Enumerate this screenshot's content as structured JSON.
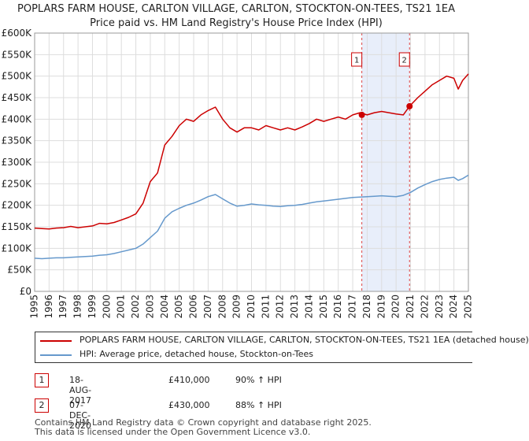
{
  "chart_data": {
    "type": "line",
    "title": "POPLARS FARM HOUSE, CARLTON VILLAGE, CARLTON, STOCKTON-ON-TEES, TS21 1EA",
    "subtitle": "Price paid vs. HM Land Registry's House Price Index (HPI)",
    "xlim": [
      1995,
      2025
    ],
    "ylim": [
      0,
      600000
    ],
    "y_ticks": [
      0,
      50000,
      100000,
      150000,
      200000,
      250000,
      300000,
      350000,
      400000,
      450000,
      500000,
      550000,
      600000
    ],
    "y_tick_labels": [
      "£0",
      "£50K",
      "£100K",
      "£150K",
      "£200K",
      "£250K",
      "£300K",
      "£350K",
      "£400K",
      "£450K",
      "£500K",
      "£550K",
      "£600K"
    ],
    "x_ticks": [
      1995,
      1996,
      1997,
      1998,
      1999,
      2000,
      2001,
      2002,
      2003,
      2004,
      2005,
      2006,
      2007,
      2008,
      2009,
      2010,
      2011,
      2012,
      2013,
      2014,
      2015,
      2016,
      2017,
      2018,
      2019,
      2020,
      2021,
      2022,
      2023,
      2024,
      2025
    ],
    "x_tick_labels": [
      "1995",
      "1996",
      "1997",
      "1998",
      "1999",
      "2000",
      "2001",
      "2002",
      "2003",
      "2004",
      "2005",
      "2006",
      "2007",
      "2008",
      "2009",
      "2010",
      "2011",
      "2012",
      "2013",
      "2014",
      "2015",
      "2016",
      "2017",
      "2018",
      "2019",
      "2020",
      "2021",
      "2022",
      "2023",
      "2024",
      "2025"
    ],
    "series": [
      {
        "name": "POPLARS FARM HOUSE, CARLTON VILLAGE, CARLTON, STOCKTON-ON-TEES, TS21 1EA (detached house)",
        "color": "#cc0000",
        "x": [
          1995.0,
          1995.5,
          1996.0,
          1996.5,
          1997.0,
          1997.5,
          1998.0,
          1998.5,
          1999.0,
          1999.5,
          2000.0,
          2000.5,
          2001.0,
          2001.5,
          2002.0,
          2002.5,
          2003.0,
          2003.5,
          2004.0,
          2004.5,
          2005.0,
          2005.5,
          2006.0,
          2006.5,
          2007.0,
          2007.5,
          2008.0,
          2008.5,
          2009.0,
          2009.5,
          2010.0,
          2010.5,
          2011.0,
          2011.5,
          2012.0,
          2012.5,
          2013.0,
          2013.5,
          2014.0,
          2014.5,
          2015.0,
          2015.5,
          2016.0,
          2016.5,
          2017.0,
          2017.5,
          2018.0,
          2018.5,
          2019.0,
          2019.5,
          2020.0,
          2020.5,
          2020.93,
          2021.5,
          2022.0,
          2022.5,
          2023.0,
          2023.5,
          2024.0,
          2024.3,
          2024.6,
          2025.0
        ],
        "values": [
          147000,
          146000,
          145000,
          147000,
          148000,
          151000,
          148000,
          150000,
          152000,
          158000,
          157000,
          160000,
          166000,
          172000,
          180000,
          205000,
          255000,
          275000,
          340000,
          360000,
          385000,
          400000,
          395000,
          410000,
          420000,
          428000,
          400000,
          380000,
          370000,
          380000,
          380000,
          375000,
          385000,
          380000,
          375000,
          380000,
          375000,
          382000,
          390000,
          400000,
          395000,
          400000,
          405000,
          400000,
          410000,
          415000,
          410000,
          415000,
          418000,
          415000,
          412000,
          410000,
          430000,
          450000,
          465000,
          480000,
          490000,
          500000,
          495000,
          470000,
          490000,
          505000
        ]
      },
      {
        "name": "HPI: Average price, detached house, Stockton-on-Tees",
        "color": "#6699cc",
        "x": [
          1995.0,
          1995.5,
          1996.0,
          1996.5,
          1997.0,
          1997.5,
          1998.0,
          1998.5,
          1999.0,
          1999.5,
          2000.0,
          2000.5,
          2001.0,
          2001.5,
          2002.0,
          2002.5,
          2003.0,
          2003.5,
          2004.0,
          2004.5,
          2005.0,
          2005.5,
          2006.0,
          2006.5,
          2007.0,
          2007.5,
          2008.0,
          2008.5,
          2009.0,
          2009.5,
          2010.0,
          2010.5,
          2011.0,
          2011.5,
          2012.0,
          2012.5,
          2013.0,
          2013.5,
          2014.0,
          2014.5,
          2015.0,
          2015.5,
          2016.0,
          2016.5,
          2017.0,
          2017.5,
          2018.0,
          2018.5,
          2019.0,
          2019.5,
          2020.0,
          2020.5,
          2021.0,
          2021.5,
          2022.0,
          2022.5,
          2023.0,
          2023.5,
          2024.0,
          2024.3,
          2024.6,
          2025.0
        ],
        "values": [
          77000,
          76000,
          77000,
          78000,
          78000,
          79000,
          80000,
          81000,
          82000,
          84000,
          85000,
          88000,
          92000,
          96000,
          100000,
          110000,
          125000,
          140000,
          170000,
          185000,
          193000,
          200000,
          205000,
          212000,
          220000,
          225000,
          215000,
          205000,
          198000,
          200000,
          203000,
          201000,
          200000,
          198000,
          197000,
          199000,
          200000,
          202000,
          205000,
          208000,
          210000,
          212000,
          214000,
          216000,
          218000,
          219000,
          220000,
          221000,
          222000,
          221000,
          220000,
          223000,
          230000,
          240000,
          248000,
          255000,
          260000,
          263000,
          265000,
          258000,
          262000,
          270000
        ]
      }
    ],
    "sales": [
      {
        "label": "1",
        "x": 2017.63,
        "value": 410000
      },
      {
        "label": "2",
        "x": 2020.93,
        "value": 430000
      }
    ],
    "shaded_span": [
      2017.63,
      2020.93
    ],
    "grid": true
  },
  "legend": {
    "property": "POPLARS FARM HOUSE, CARLTON VILLAGE, CARLTON, STOCKTON-ON-TEES, TS21 1EA (detached house)",
    "hpi": "HPI: Average price, detached house, Stockton-on-Tees"
  },
  "transactions": [
    {
      "num": "1",
      "date": "18-AUG-2017",
      "price": "£410,000",
      "hpi": "90% ↑ HPI"
    },
    {
      "num": "2",
      "date": "07-DEC-2020",
      "price": "£430,000",
      "hpi": "88% ↑ HPI"
    }
  ],
  "footer": {
    "line1": "Contains HM Land Registry data © Crown copyright and database right 2025.",
    "line2": "This data is licensed under the Open Government Licence v3.0."
  }
}
